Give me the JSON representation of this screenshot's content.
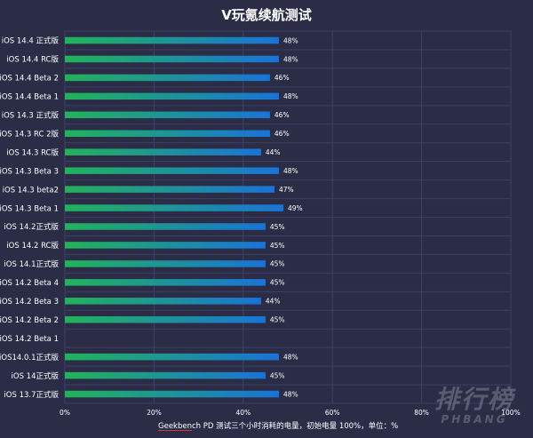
{
  "chart_data": {
    "type": "bar",
    "orientation": "horizontal",
    "title": "V玩氪续航测试",
    "footnote": "Geekbench PD 测试三个小时消耗的电量，初始电量 100%，单位：%",
    "xlim": [
      0,
      100
    ],
    "x_ticks": [
      "0%",
      "20%",
      "40%",
      "60%",
      "80%",
      "100%"
    ],
    "grid": true,
    "colors": {
      "bar_start": "#22b35a",
      "bar_end": "#1a73d8",
      "background": "#2b2d47"
    },
    "categories": [
      "iOS 14.4 正式版",
      "iOS 14.4 RC版",
      "iOS 14.4 Beta 2",
      "iOS 14.4 Beta 1",
      "iOS 14.3 正式版",
      "iOS 14.3 RC 2版",
      "iOS 14.3 RC版",
      "iOS 14.3 Beta 3",
      "iOS 14.3 beta2",
      "iOS 14.3 Beta 1",
      "iOS 14.2正式版",
      "iOS 14.2 RC版",
      "iOS 14.1正式版",
      "iOS 14.2 Beta 4",
      "iOS 14.2 Beta 3",
      "iOS 14.2 Beta 2",
      "iOS 14.2 Beta 1",
      "iOS14.0.1正式版",
      "iOS 14正式版",
      "iOS 13.7正式版"
    ],
    "values": [
      48,
      48,
      46,
      48,
      46,
      46,
      44,
      48,
      47,
      49,
      45,
      45,
      45,
      45,
      44,
      45,
      null,
      48,
      45,
      48
    ],
    "value_labels": [
      "48%",
      "48%",
      "46%",
      "48%",
      "46%",
      "46%",
      "44%",
      "48%",
      "47%",
      "49%",
      "45%",
      "45%",
      "45%",
      "45%",
      "44%",
      "45%",
      "",
      "48%",
      "45%",
      "48%"
    ]
  },
  "watermark": {
    "cn": "排行榜",
    "en": "PHBANG"
  }
}
